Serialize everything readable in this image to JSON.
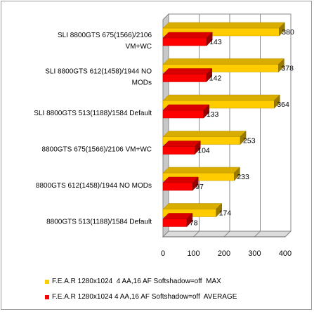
{
  "chart_data": {
    "type": "bar",
    "orientation": "horizontal",
    "style": "3d",
    "categories": [
      "SLI 8800GTS 675(1566)/2106 VM+WC",
      "SLI 8800GTS 612(1458)/1944 NO MODs",
      "SLI 8800GTS 513(1188)/1584 Default",
      "8800GTS 675(1566)/2106 VM+WC",
      "8800GTS 612(1458)/1944 NO MODs",
      "8800GTS 513(1188)/1584 Default"
    ],
    "category_label_lines": [
      [
        "SLI 8800GTS 675(1566)/2106",
        "VM+WC"
      ],
      [
        "SLI 8800GTS 612(1458)/1944 NO",
        "MODs"
      ],
      [
        "SLI 8800GTS 513(1188)/1584 Default"
      ],
      [
        "8800GTS 675(1566)/2106 VM+WC"
      ],
      [
        "8800GTS 612(1458)/1944 NO MODs"
      ],
      [
        "8800GTS 513(1188)/1584 Default"
      ]
    ],
    "series": [
      {
        "name": "F.E.A.R 1280x1024  4 AA,16 AF Softshadow=off  MAX",
        "color": "#ffcc00",
        "values": [
          380,
          378,
          364,
          253,
          233,
          174
        ]
      },
      {
        "name": "F.E.A.R 1280x1024 4 AA,16 AF Softshadow=off  AVERAGE",
        "color": "#ff0000",
        "values": [
          143,
          142,
          133,
          104,
          97,
          78
        ]
      }
    ],
    "xlim": [
      0,
      400
    ],
    "xticks": [
      "0",
      "100",
      "200",
      "300",
      "400"
    ],
    "grid": true,
    "legend_position": "bottom"
  }
}
